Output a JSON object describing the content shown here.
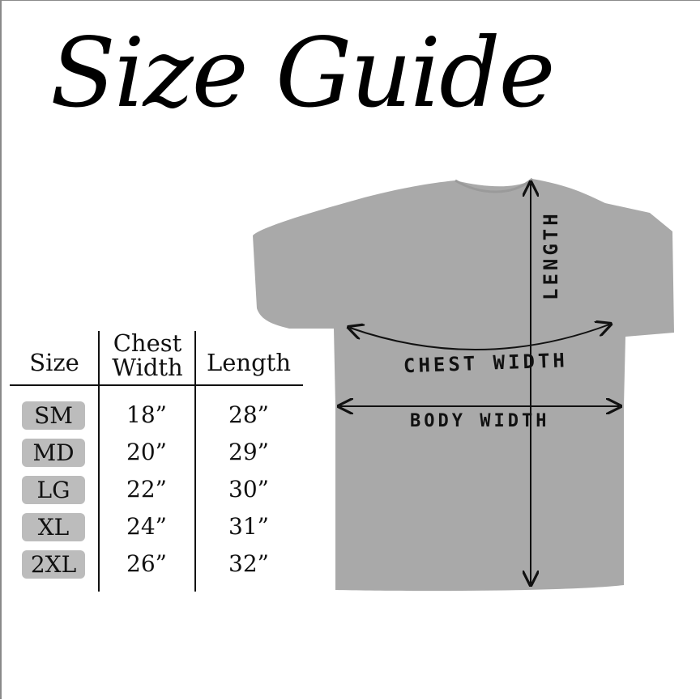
{
  "title": "Size Guide",
  "table": {
    "headers": {
      "size": "Size",
      "chest_line1": "Chest",
      "chest_line2": "Width",
      "length": "Length"
    },
    "rows": [
      {
        "size": "SM",
        "chest": "18”",
        "length": "28”"
      },
      {
        "size": "MD",
        "chest": "20”",
        "length": "29”"
      },
      {
        "size": "LG",
        "chest": "22”",
        "length": "30”"
      },
      {
        "size": "XL",
        "chest": "24”",
        "length": "31”"
      },
      {
        "size": "2XL",
        "chest": "26”",
        "length": "32”"
      }
    ],
    "badge_color": "#bcbcbc"
  },
  "diagram": {
    "length_label": "LENGTH",
    "chest_label": "CHEST WIDTH",
    "body_label": "BODY WIDTH",
    "shirt_color": "#a9a9a9"
  }
}
